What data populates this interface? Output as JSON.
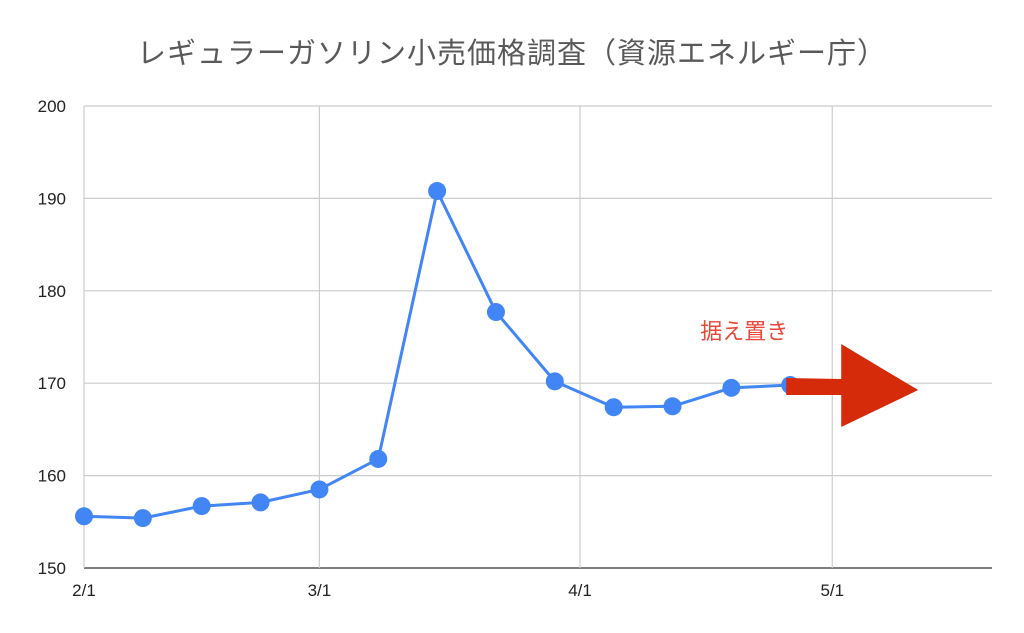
{
  "chart_data": {
    "type": "line",
    "title": "レギュラーガソリン小売価格調査（資源エネルギー庁）",
    "xlabel": "",
    "ylabel": "",
    "ylim": [
      150,
      200
    ],
    "yticks": [
      150,
      160,
      170,
      180,
      190,
      200
    ],
    "xlim": [
      "2022-02-01",
      "2022-05-20"
    ],
    "xticks": [
      {
        "date": "2022-02-01",
        "label": "2/1"
      },
      {
        "date": "2022-03-01",
        "label": "3/1"
      },
      {
        "date": "2022-04-01",
        "label": "4/1"
      },
      {
        "date": "2022-05-01",
        "label": "5/1"
      }
    ],
    "grid": true,
    "legend": "none",
    "series": [
      {
        "color": "#4285f4",
        "points": [
          {
            "x": "2022-02-01",
            "y": 155.6
          },
          {
            "x": "2022-02-08",
            "y": 155.4
          },
          {
            "x": "2022-02-15",
            "y": 156.7
          },
          {
            "x": "2022-02-22",
            "y": 157.1
          },
          {
            "x": "2022-03-01",
            "y": 158.5
          },
          {
            "x": "2022-03-08",
            "y": 161.8
          },
          {
            "x": "2022-03-15",
            "y": 190.8
          },
          {
            "x": "2022-03-22",
            "y": 177.7
          },
          {
            "x": "2022-03-29",
            "y": 170.2
          },
          {
            "x": "2022-04-05",
            "y": 167.4
          },
          {
            "x": "2022-04-12",
            "y": 167.5
          },
          {
            "x": "2022-04-19",
            "y": 169.5
          },
          {
            "x": "2022-04-26",
            "y": 169.8
          }
        ]
      }
    ],
    "annotation": {
      "text": "据え置き",
      "color": "#e8473a",
      "arrow_color": "#d52b0b",
      "arrow_direction": "right"
    }
  }
}
